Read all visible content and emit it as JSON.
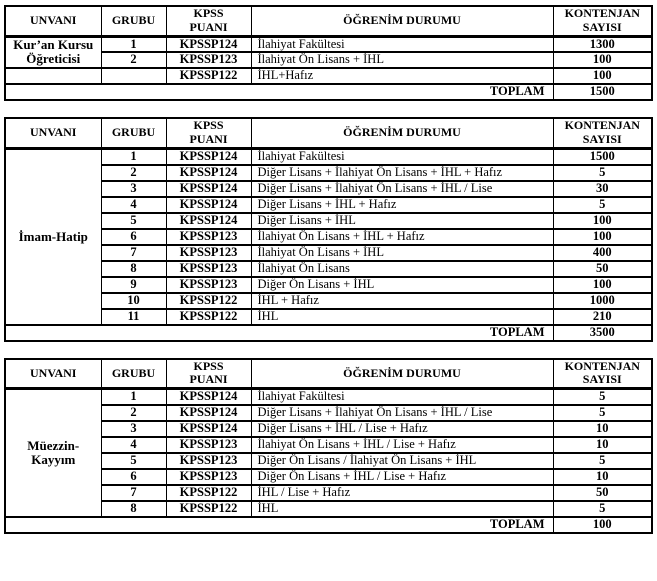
{
  "headers": {
    "unvani": "UNVANI",
    "grubu": "GRUBU",
    "kpss": "KPSS\nPUANI",
    "ogrenim": "ÖĞRENİM DURUMU",
    "kontenjan": "KONTENJAN\nSAYISI"
  },
  "toplam_label": "TOPLAM",
  "tables": [
    {
      "unvan": "Kur’an Kursu\nÖğreticisi",
      "unvan_rowspan": 2,
      "rows": [
        {
          "grubu": "1",
          "kpss": "KPSSP124",
          "ogrenim": "İlahiyat Fakültesi",
          "kontenjan": "1300"
        },
        {
          "grubu": "2",
          "kpss": "KPSSP123",
          "ogrenim": "İlahiyat Ön Lisans + İHL",
          "kontenjan": "100"
        },
        {
          "unvan": "",
          "grubu": "",
          "kpss": "KPSSP122",
          "ogrenim": "İHL+Hafız",
          "kontenjan": "100"
        }
      ],
      "toplam": "1500"
    },
    {
      "unvan": "İmam-Hatip",
      "unvan_rowspan": 11,
      "rows": [
        {
          "grubu": "1",
          "kpss": "KPSSP124",
          "ogrenim": "İlahiyat Fakültesi",
          "kontenjan": "1500"
        },
        {
          "grubu": "2",
          "kpss": "KPSSP124",
          "ogrenim": "Diğer Lisans + İlahiyat Ön Lisans + İHL + Hafız",
          "kontenjan": "5"
        },
        {
          "grubu": "3",
          "kpss": "KPSSP124",
          "ogrenim": "Diğer Lisans + İlahiyat Ön Lisans + İHL / Lise",
          "kontenjan": "30"
        },
        {
          "grubu": "4",
          "kpss": "KPSSP124",
          "ogrenim": "Diğer Lisans + İHL + Hafız",
          "kontenjan": "5"
        },
        {
          "grubu": "5",
          "kpss": "KPSSP124",
          "ogrenim": "Diğer Lisans + İHL",
          "kontenjan": "100"
        },
        {
          "grubu": "6",
          "kpss": "KPSSP123",
          "ogrenim": "İlahiyat Ön Lisans + İHL + Hafız",
          "kontenjan": "100"
        },
        {
          "grubu": "7",
          "kpss": "KPSSP123",
          "ogrenim": "İlahiyat Ön Lisans + İHL",
          "kontenjan": "400"
        },
        {
          "grubu": "8",
          "kpss": "KPSSP123",
          "ogrenim": "İlahiyat Ön Lisans",
          "kontenjan": "50"
        },
        {
          "grubu": "9",
          "kpss": "KPSSP123",
          "ogrenim": "Diğer Ön Lisans + İHL",
          "kontenjan": "100"
        },
        {
          "grubu": "10",
          "kpss": "KPSSP122",
          "ogrenim": "İHL + Hafız",
          "kontenjan": "1000"
        },
        {
          "grubu": "11",
          "kpss": "KPSSP122",
          "ogrenim": "İHL",
          "kontenjan": "210"
        }
      ],
      "toplam": "3500"
    },
    {
      "unvan": "Müezzin-\nKayyım",
      "unvan_rowspan": 8,
      "rows": [
        {
          "grubu": "1",
          "kpss": "KPSSP124",
          "ogrenim": "İlahiyat Fakültesi",
          "kontenjan": "5"
        },
        {
          "grubu": "2",
          "kpss": "KPSSP124",
          "ogrenim": "Diğer Lisans + İlahiyat Ön Lisans + İHL / Lise",
          "kontenjan": "5"
        },
        {
          "grubu": "3",
          "kpss": "KPSSP124",
          "ogrenim": "Diğer Lisans + İHL / Lise + Hafız",
          "kontenjan": "10"
        },
        {
          "grubu": "4",
          "kpss": "KPSSP123",
          "ogrenim": "İlahiyat Ön Lisans + İHL / Lise + Hafız",
          "kontenjan": "10"
        },
        {
          "grubu": "5",
          "kpss": "KPSSP123",
          "ogrenim": "Diğer Ön Lisans / İlahiyat Ön Lisans + İHL",
          "kontenjan": "5"
        },
        {
          "grubu": "6",
          "kpss": "KPSSP123",
          "ogrenim": "Diğer Ön Lisans + İHL / Lise + Hafız",
          "kontenjan": "10"
        },
        {
          "grubu": "7",
          "kpss": "KPSSP122",
          "ogrenim": "İHL / Lise + Hafız",
          "kontenjan": "50"
        },
        {
          "grubu": "8",
          "kpss": "KPSSP122",
          "ogrenim": "İHL",
          "kontenjan": "5"
        }
      ],
      "toplam": "100"
    }
  ]
}
